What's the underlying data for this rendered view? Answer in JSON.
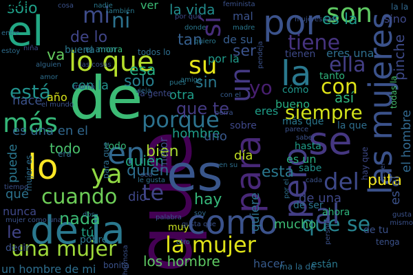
{
  "background": "#000000",
  "words": [
    {
      "text": "que",
      "color": "#440154",
      "vertical": true
    },
    {
      "text": "de",
      "color": "#3CBB75",
      "vertical": false
    },
    {
      "text": "es",
      "color": "#39568C",
      "vertical": false
    },
    {
      "text": "de la",
      "color": "#2A788E",
      "vertical": false
    },
    {
      "text": "el",
      "color": "#22A884",
      "vertical": false
    },
    {
      "text": "por",
      "color": "#3B528B",
      "vertical": false
    },
    {
      "text": "se",
      "color": "#453781",
      "vertical": false
    },
    {
      "text": "las mujeres",
      "color": "#3B528B",
      "vertical": true
    },
    {
      "text": "lo",
      "color": "#FDE725",
      "vertical": false
    },
    {
      "text": "para",
      "color": "#482878",
      "vertical": true
    },
    {
      "text": "la",
      "color": "#2A788E",
      "vertical": false
    },
    {
      "text": "como",
      "color": "#3B528B",
      "vertical": false
    },
    {
      "text": "pero",
      "color": "#433E85",
      "vertical": true
    },
    {
      "text": "en",
      "color": "#31688E",
      "vertical": false
    },
    {
      "text": "lo que",
      "color": "#B5DE2B",
      "vertical": false
    },
    {
      "text": "un",
      "color": "#443983",
      "vertical": true
    },
    {
      "text": "son",
      "color": "#5EC962",
      "vertical": false
    },
    {
      "text": "sí",
      "color": "#472D7B",
      "vertical": true
    },
    {
      "text": "más",
      "color": "#35B779",
      "vertical": false
    },
    {
      "text": "porque",
      "color": "#2C728E",
      "vertical": false
    },
    {
      "text": "la mujer",
      "color": "#DFE318",
      "vertical": false
    },
    {
      "text": "ya",
      "color": "#90D743",
      "vertical": false
    },
    {
      "text": "del",
      "color": "#3E4989",
      "vertical": false
    },
    {
      "text": "con",
      "color": "#DFE318",
      "vertical": false
    },
    {
      "text": "una mujer",
      "color": "#9FDA3A",
      "vertical": false
    },
    {
      "text": "cuando",
      "color": "#6ECE58",
      "vertical": false
    },
    {
      "text": "tiene",
      "color": "#46337F",
      "vertical": false
    },
    {
      "text": "mi",
      "color": "#3E4C8A",
      "vertical": false
    },
    {
      "text": "ni",
      "color": "#2C728E",
      "vertical": false
    },
    {
      "text": "su",
      "color": "#E5E419",
      "vertical": false
    },
    {
      "text": "está",
      "color": "#21918C",
      "vertical": false
    },
    {
      "text": "que se",
      "color": "#26828E",
      "vertical": false
    },
    {
      "text": "al",
      "color": "#3F4889",
      "vertical": false
    },
    {
      "text": "te",
      "color": "#414487",
      "vertical": false
    },
    {
      "text": "es la",
      "color": "#1F9A8A",
      "vertical": false
    },
    {
      "text": "ella",
      "color": "#433E85",
      "vertical": false
    },
    {
      "text": "yo",
      "color": "#481F70",
      "vertical": false
    },
    {
      "text": "siempre",
      "color": "#D2E21B",
      "vertical": false
    },
    {
      "text": "nada",
      "color": "#3BBB75",
      "vertical": false
    },
    {
      "text": "la vida",
      "color": "#228C8D",
      "vertical": false
    },
    {
      "text": "de lo",
      "color": "#404588",
      "vertical": false
    },
    {
      "text": "sólo",
      "color": "#1FA088",
      "vertical": false
    },
    {
      "text": "ser",
      "color": "#3B528B",
      "vertical": false
    },
    {
      "text": "quien",
      "color": "#2E6E8E",
      "vertical": false
    },
    {
      "text": "bien",
      "color": "#AADC32",
      "vertical": false
    },
    {
      "text": "hay",
      "color": "#35B779",
      "vertical": false
    },
    {
      "text": "solo",
      "color": "#277F8E",
      "vertical": false
    },
    {
      "text": "esa",
      "color": "#26AD81",
      "vertical": false
    },
    {
      "text": "tan",
      "color": "#355F8D",
      "vertical": false
    },
    {
      "text": "sin",
      "color": "#2A788E",
      "vertical": false
    },
    {
      "text": "de su",
      "color": "#365C8D",
      "vertical": false
    },
    {
      "text": "puta",
      "color": "#F1E51D",
      "vertical": false
    },
    {
      "text": "pinche",
      "color": "#3E4A89",
      "vertical": true
    },
    {
      "text": "el hombre",
      "color": "#31688E",
      "vertical": true
    },
    {
      "text": "es el",
      "color": "#3B528B",
      "vertical": true
    },
    {
      "text": "esta",
      "color": "#2A788E",
      "vertical": false
    },
    {
      "text": "es un",
      "color": "#29AF7F",
      "vertical": false
    },
    {
      "text": "de una",
      "color": "#3F4788",
      "vertical": false
    },
    {
      "text": "mucho",
      "color": "#3CBC74",
      "vertical": false
    },
    {
      "text": "quiere",
      "color": "#2C718E",
      "vertical": true
    },
    {
      "text": "los hombre",
      "color": "#5EC962",
      "vertical": false
    },
    {
      "text": "hacer",
      "color": "#375A8C",
      "vertical": false
    },
    {
      "text": "un hombre de mi",
      "color": "#2E6E8E",
      "vertical": false
    },
    {
      "text": "que te",
      "color": "#443A83",
      "vertical": false
    },
    {
      "text": "hombre",
      "color": "#1F9E89",
      "vertical": false
    },
    {
      "text": "todo",
      "color": "#4AC16D",
      "vertical": false
    },
    {
      "text": "quien",
      "color": "#22A884",
      "vertical": false
    },
    {
      "text": "dio",
      "color": "#3F4788",
      "vertical": false
    },
    {
      "text": "tú",
      "color": "#20A386",
      "vertical": false
    },
    {
      "text": "otra",
      "color": "#1F9E89",
      "vertical": false
    },
    {
      "text": "uno",
      "color": "#38588C",
      "vertical": false
    },
    {
      "text": "día",
      "color": "#C2DF23",
      "vertical": false
    },
    {
      "text": "así",
      "color": "#2FB47C",
      "vertical": false
    },
    {
      "text": "bueno",
      "color": "#27AD81",
      "vertical": false
    },
    {
      "text": "eres",
      "color": "#1F9E89",
      "vertical": false
    },
    {
      "text": "puede",
      "color": "#2A768E",
      "vertical": true
    },
    {
      "text": "qué",
      "color": "#2C728E",
      "vertical": false
    },
    {
      "text": "le",
      "color": "#414487",
      "vertical": false
    },
    {
      "text": "es una en el",
      "color": "#31688E",
      "vertical": false
    },
    {
      "text": "hace",
      "color": "#3B528B",
      "vertical": false
    },
    {
      "text": "va",
      "color": "#65CB5E",
      "vertical": false
    },
    {
      "text": "por la",
      "color": "#1F9A8A",
      "vertical": false
    },
    {
      "text": "con la",
      "color": "#21918C",
      "vertical": false
    },
    {
      "text": "mejor",
      "color": "#3E4A89",
      "vertical": true
    },
    {
      "text": "año",
      "color": "#D8E219",
      "vertical": false
    },
    {
      "text": "nunca",
      "color": "#3F4889",
      "vertical": false
    },
    {
      "text": "eres una",
      "color": "#2E6E8E",
      "vertical": false
    },
    {
      "text": "ver",
      "color": "#3BBB75",
      "vertical": false
    },
    {
      "text": "mal",
      "color": "#3B528B",
      "vertical": false
    },
    {
      "text": "sino",
      "color": "#3E4989",
      "vertical": false
    },
    {
      "text": "tienen",
      "color": "#3E4A89",
      "vertical": false
    },
    {
      "text": "cómo",
      "color": "#1F968B",
      "vertical": false
    },
    {
      "text": "tanto",
      "color": "#2FB47C",
      "vertical": false
    },
    {
      "text": "todas la",
      "color": "#46C06F",
      "vertical": true
    },
    {
      "text": "más que",
      "color": "#2A788E",
      "vertical": false
    },
    {
      "text": "la que",
      "color": "#2E6E8E",
      "vertical": false
    },
    {
      "text": "sobre",
      "color": "#3F4889",
      "vertical": false
    },
    {
      "text": "hasta",
      "color": "#1F9E89",
      "vertical": false
    },
    {
      "text": "sabe",
      "color": "#21918C",
      "vertical": false
    },
    {
      "text": "de ser",
      "color": "#2B758E",
      "vertical": false
    },
    {
      "text": "ahora",
      "color": "#2FB47C",
      "vertical": false
    },
    {
      "text": "hay que",
      "color": "#3E4A89",
      "vertical": true
    },
    {
      "text": "de tu",
      "color": "#3B528B",
      "vertical": false
    },
    {
      "text": "todo",
      "color": "#35B779",
      "vertical": false
    },
    {
      "text": "muy",
      "color": "#C8E020",
      "vertical": false
    },
    {
      "text": "pobre",
      "color": "#2A788E",
      "vertical": false
    },
    {
      "text": "buena",
      "color": "#2A788E",
      "vertical": false
    },
    {
      "text": "morra",
      "color": "#35B779",
      "vertical": false
    },
    {
      "text": "todos lo",
      "color": "#2E6E8E",
      "vertical": false
    },
    {
      "text": "el amor",
      "color": "#2A788E",
      "vertical": false
    },
    {
      "text": "era",
      "color": "#31688E",
      "vertical": false
    },
    {
      "text": "mujer es",
      "color": "#2E6E8E",
      "vertical": true
    },
    {
      "text": "por el",
      "color": "#2E6E8E",
      "vertical": true
    },
    {
      "text": "la gente",
      "color": "#3E4A89",
      "vertical": false
    },
    {
      "text": "con el",
      "color": "#365C8D",
      "vertical": false
    },
    {
      "text": "están",
      "color": "#2A788E",
      "vertical": false
    },
    {
      "text": "ma la de",
      "color": "#2E6E8E",
      "vertical": false
    },
    {
      "text": "bonita",
      "color": "#3B528B",
      "vertical": false
    },
    {
      "text": "cosa",
      "color": "#3B528B",
      "vertical": false
    },
    {
      "text": "nadie",
      "color": "#2A788E",
      "vertical": false
    },
    {
      "text": "también",
      "color": "#2A788E",
      "vertical": false
    },
    {
      "text": "por qué",
      "color": "#3E4A89",
      "vertical": false
    },
    {
      "text": "donde",
      "color": "#2A788E",
      "vertical": false
    },
    {
      "text": "madre",
      "color": "#2A788E",
      "vertical": false
    },
    {
      "text": "quiero",
      "color": "#2A788E",
      "vertical": false
    },
    {
      "text": "el mundo",
      "color": "#3B528B",
      "vertical": false
    },
    {
      "text": "amor",
      "color": "#2E6E8E",
      "vertical": false
    },
    {
      "text": "entre",
      "color": "#2E6E8E",
      "vertical": false
    },
    {
      "text": "estoy",
      "color": "#2E6E8E",
      "vertical": false
    },
    {
      "text": "alguien",
      "color": "#31688E",
      "vertical": false
    },
    {
      "text": "niña",
      "color": "#3E4A89",
      "vertical": false
    },
    {
      "text": "la la",
      "color": "#31688E",
      "vertical": false
    },
    {
      "text": "perra",
      "color": "#3B528B",
      "vertical": false
    },
    {
      "text": "vieja",
      "color": "#2E6E8E",
      "vertical": false
    },
    {
      "text": "amigo",
      "color": "#2A788E",
      "vertical": false
    },
    {
      "text": "para que",
      "color": "#2E6E8E",
      "vertical": true
    },
    {
      "text": "sea",
      "color": "#3B528B",
      "vertical": false
    },
    {
      "text": "le gusta",
      "color": "#2E6E8E",
      "vertical": false
    },
    {
      "text": "cada",
      "color": "#3B528B",
      "vertical": false
    },
    {
      "text": "mismo",
      "color": "#3B528B",
      "vertical": false
    },
    {
      "text": "gusta",
      "color": "#3B528B",
      "vertical": false
    },
    {
      "text": "saber",
      "color": "#3B528B",
      "vertical": false
    },
    {
      "text": "dos",
      "color": "#2E6E8E",
      "vertical": false
    },
    {
      "text": "pues",
      "color": "#2A788E",
      "vertical": false
    },
    {
      "text": "tiempo",
      "color": "#3B528B",
      "vertical": false
    },
    {
      "text": "mujer como una",
      "color": "#3B528B",
      "vertical": false
    },
    {
      "text": "decir",
      "color": "#3B528B",
      "vertical": false
    },
    {
      "text": "en su",
      "color": "#2E6E8E",
      "vertical": false
    },
    {
      "text": "hermosa",
      "color": "#3B528B",
      "vertical": true
    },
    {
      "text": "palabra",
      "color": "#3B528B",
      "vertical": false
    },
    {
      "text": "gusta que",
      "color": "#3B528B",
      "vertical": false
    },
    {
      "text": "otro",
      "color": "#2E6E8E",
      "vertical": false
    },
    {
      "text": "soy",
      "color": "#31688E",
      "vertical": false
    },
    {
      "text": "mujeres son",
      "color": "#3B528B",
      "vertical": false
    },
    {
      "text": "feminista",
      "color": "#3B528B",
      "vertical": false
    },
    {
      "text": "mamá",
      "color": "#3B528B",
      "vertical": false
    },
    {
      "text": "las cosas",
      "color": "#3B528B",
      "vertical": false
    },
    {
      "text": "parece",
      "color": "#3B528B",
      "vertical": false
    },
    {
      "text": "persona",
      "color": "#3B528B",
      "vertical": true
    },
    {
      "text": "pendeja",
      "color": "#3B528B",
      "vertical": true
    },
    {
      "text": "tener",
      "color": "#3B528B",
      "vertical": true
    },
    {
      "text": "tenga",
      "color": "#3B528B",
      "vertical": false
    },
    {
      "text": "jajaja",
      "color": "#3B528B",
      "vertical": false
    },
    {
      "text": "nos",
      "color": "#2E6E8E",
      "vertical": false
    }
  ]
}
